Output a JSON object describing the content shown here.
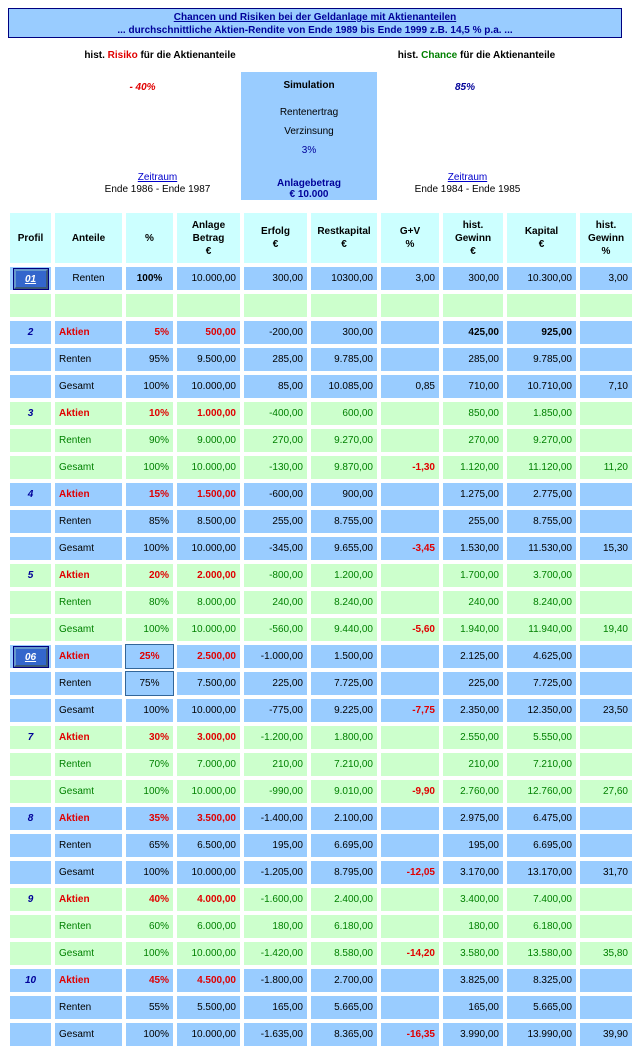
{
  "banner": {
    "line1": "Chancen und Risiken bei der Geldanlage mit Aktienanteilen",
    "line2": "... durchschnittliche Aktien-Rendite von Ende 1989 bis Ende 1999 z.B. 14,5 % p.a. ..."
  },
  "risk": {
    "prefix": "hist. ",
    "word": "Risiko",
    "suffix": " für die Aktienanteile",
    "value": "- 40%",
    "link": "Zeitraum",
    "period": "Ende 1986 - Ende 1987"
  },
  "chance": {
    "prefix": "hist. ",
    "word": "Chance",
    "suffix": " für die Aktienanteile",
    "value": "85%",
    "link": "Zeitraum",
    "period": "Ende 1984 - Ende 1985"
  },
  "simulation": {
    "title": "Simulation",
    "line1": "Rentenertrag",
    "line2": "Verzinsung",
    "rate": "3%",
    "amount_label": "Anlagebetrag",
    "amount": "€ 10.000"
  },
  "headers": [
    "Profil",
    "Anteile",
    "%",
    "Anlage\nBetrag\n€",
    "Erfolg\n€",
    "Restkapital\n€",
    "G+V\n%",
    "hist.\nGewinn\n€",
    "Kapital\n€",
    "hist.\nGewinn\n%"
  ],
  "row01": {
    "profile": "01",
    "anteil": "Renten",
    "pct": "100%",
    "betrag": "10.000,00",
    "erfolg": "300,00",
    "rest": "10300,00",
    "gv": "3,00",
    "gewinn": "300,00",
    "kapital": "10.300,00",
    "gewinnpct": "3,00"
  },
  "profiles": [
    {
      "id": "2",
      "color": "blue",
      "button": false,
      "aktien": {
        "pct": "5%",
        "betrag": "500,00",
        "erfolg": "-200,00",
        "rest": "300,00",
        "gewinn": "425,00",
        "kapital": "925,00"
      },
      "renten": {
        "pct": "95%",
        "betrag": "9.500,00",
        "erfolg": "285,00",
        "rest": "9.785,00",
        "gewinn": "285,00",
        "kapital": "9.785,00"
      },
      "gesamt": {
        "pct": "100%",
        "betrag": "10.000,00",
        "erfolg": "85,00",
        "rest": "10.085,00",
        "gv": "0,85",
        "gv_neg": false,
        "gewinn": "710,00",
        "kapital": "10.710,00",
        "gewinnpct": "7,10"
      }
    },
    {
      "id": "3",
      "color": "green",
      "button": false,
      "aktien": {
        "pct": "10%",
        "betrag": "1.000,00",
        "erfolg": "-400,00",
        "rest": "600,00",
        "gewinn": "850,00",
        "kapital": "1.850,00"
      },
      "renten": {
        "pct": "90%",
        "betrag": "9.000,00",
        "erfolg": "270,00",
        "rest": "9.270,00",
        "gewinn": "270,00",
        "kapital": "9.270,00"
      },
      "gesamt": {
        "pct": "100%",
        "betrag": "10.000,00",
        "erfolg": "-130,00",
        "rest": "9.870,00",
        "gv": "-1,30",
        "gv_neg": true,
        "gewinn": "1.120,00",
        "kapital": "11.120,00",
        "gewinnpct": "11,20"
      }
    },
    {
      "id": "4",
      "color": "blue",
      "button": false,
      "aktien": {
        "pct": "15%",
        "betrag": "1.500,00",
        "erfolg": "-600,00",
        "rest": "900,00",
        "gewinn": "1.275,00",
        "kapital": "2.775,00"
      },
      "renten": {
        "pct": "85%",
        "betrag": "8.500,00",
        "erfolg": "255,00",
        "rest": "8.755,00",
        "gewinn": "255,00",
        "kapital": "8.755,00"
      },
      "gesamt": {
        "pct": "100%",
        "betrag": "10.000,00",
        "erfolg": "-345,00",
        "rest": "9.655,00",
        "gv": "-3,45",
        "gv_neg": true,
        "gewinn": "1.530,00",
        "kapital": "11.530,00",
        "gewinnpct": "15,30"
      }
    },
    {
      "id": "5",
      "color": "green",
      "button": false,
      "aktien": {
        "pct": "20%",
        "betrag": "2.000,00",
        "erfolg": "-800,00",
        "rest": "1.200,00",
        "gewinn": "1.700,00",
        "kapital": "3.700,00"
      },
      "renten": {
        "pct": "80%",
        "betrag": "8.000,00",
        "erfolg": "240,00",
        "rest": "8.240,00",
        "gewinn": "240,00",
        "kapital": "8.240,00"
      },
      "gesamt": {
        "pct": "100%",
        "betrag": "10.000,00",
        "erfolg": "-560,00",
        "rest": "9.440,00",
        "gv": "-5,60",
        "gv_neg": true,
        "gewinn": "1.940,00",
        "kapital": "11.940,00",
        "gewinnpct": "19,40"
      }
    },
    {
      "id": "06",
      "color": "blue",
      "button": true,
      "aktien": {
        "pct": "25%",
        "betrag": "2.500,00",
        "erfolg": "-1.000,00",
        "rest": "1.500,00",
        "gewinn": "2.125,00",
        "kapital": "4.625,00"
      },
      "renten": {
        "pct": "75%",
        "betrag": "7.500,00",
        "erfolg": "225,00",
        "rest": "7.725,00",
        "gewinn": "225,00",
        "kapital": "7.725,00"
      },
      "gesamt": {
        "pct": "100%",
        "betrag": "10.000,00",
        "erfolg": "-775,00",
        "rest": "9.225,00",
        "gv": "-7,75",
        "gv_neg": true,
        "gewinn": "2.350,00",
        "kapital": "12.350,00",
        "gewinnpct": "23,50"
      }
    },
    {
      "id": "7",
      "color": "green",
      "button": false,
      "aktien": {
        "pct": "30%",
        "betrag": "3.000,00",
        "erfolg": "-1.200,00",
        "rest": "1.800,00",
        "gewinn": "2.550,00",
        "kapital": "5.550,00"
      },
      "renten": {
        "pct": "70%",
        "betrag": "7.000,00",
        "erfolg": "210,00",
        "rest": "7.210,00",
        "gewinn": "210,00",
        "kapital": "7.210,00"
      },
      "gesamt": {
        "pct": "100%",
        "betrag": "10.000,00",
        "erfolg": "-990,00",
        "rest": "9.010,00",
        "gv": "-9,90",
        "gv_neg": true,
        "gewinn": "2.760,00",
        "kapital": "12.760,00",
        "gewinnpct": "27,60"
      }
    },
    {
      "id": "8",
      "color": "blue",
      "button": false,
      "aktien": {
        "pct": "35%",
        "betrag": "3.500,00",
        "erfolg": "-1.400,00",
        "rest": "2.100,00",
        "gewinn": "2.975,00",
        "kapital": "6.475,00"
      },
      "renten": {
        "pct": "65%",
        "betrag": "6.500,00",
        "erfolg": "195,00",
        "rest": "6.695,00",
        "gewinn": "195,00",
        "kapital": "6.695,00"
      },
      "gesamt": {
        "pct": "100%",
        "betrag": "10.000,00",
        "erfolg": "-1.205,00",
        "rest": "8.795,00",
        "gv": "-12,05",
        "gv_neg": true,
        "gewinn": "3.170,00",
        "kapital": "13.170,00",
        "gewinnpct": "31,70"
      }
    },
    {
      "id": "9",
      "color": "green",
      "button": false,
      "aktien": {
        "pct": "40%",
        "betrag": "4.000,00",
        "erfolg": "-1.600,00",
        "rest": "2.400,00",
        "gewinn": "3.400,00",
        "kapital": "7.400,00"
      },
      "renten": {
        "pct": "60%",
        "betrag": "6.000,00",
        "erfolg": "180,00",
        "rest": "6.180,00",
        "gewinn": "180,00",
        "kapital": "6.180,00"
      },
      "gesamt": {
        "pct": "100%",
        "betrag": "10.000,00",
        "erfolg": "-1.420,00",
        "rest": "8.580,00",
        "gv": "-14,20",
        "gv_neg": true,
        "gewinn": "3.580,00",
        "kapital": "13.580,00",
        "gewinnpct": "35,80"
      }
    },
    {
      "id": "10",
      "color": "blue",
      "button": false,
      "aktien": {
        "pct": "45%",
        "betrag": "4.500,00",
        "erfolg": "-1.800,00",
        "rest": "2.700,00",
        "gewinn": "3.825,00",
        "kapital": "8.325,00"
      },
      "renten": {
        "pct": "55%",
        "betrag": "5.500,00",
        "erfolg": "165,00",
        "rest": "5.665,00",
        "gewinn": "165,00",
        "kapital": "5.665,00"
      },
      "gesamt": {
        "pct": "100%",
        "betrag": "10.000,00",
        "erfolg": "-1.635,00",
        "rest": "8.365,00",
        "gv": "-16,35",
        "gv_neg": true,
        "gewinn": "3.990,00",
        "kapital": "13.990,00",
        "gewinnpct": "39,90"
      }
    }
  ],
  "labels": {
    "aktien": "Aktien",
    "renten": "Renten",
    "gesamt": "Gesamt"
  }
}
